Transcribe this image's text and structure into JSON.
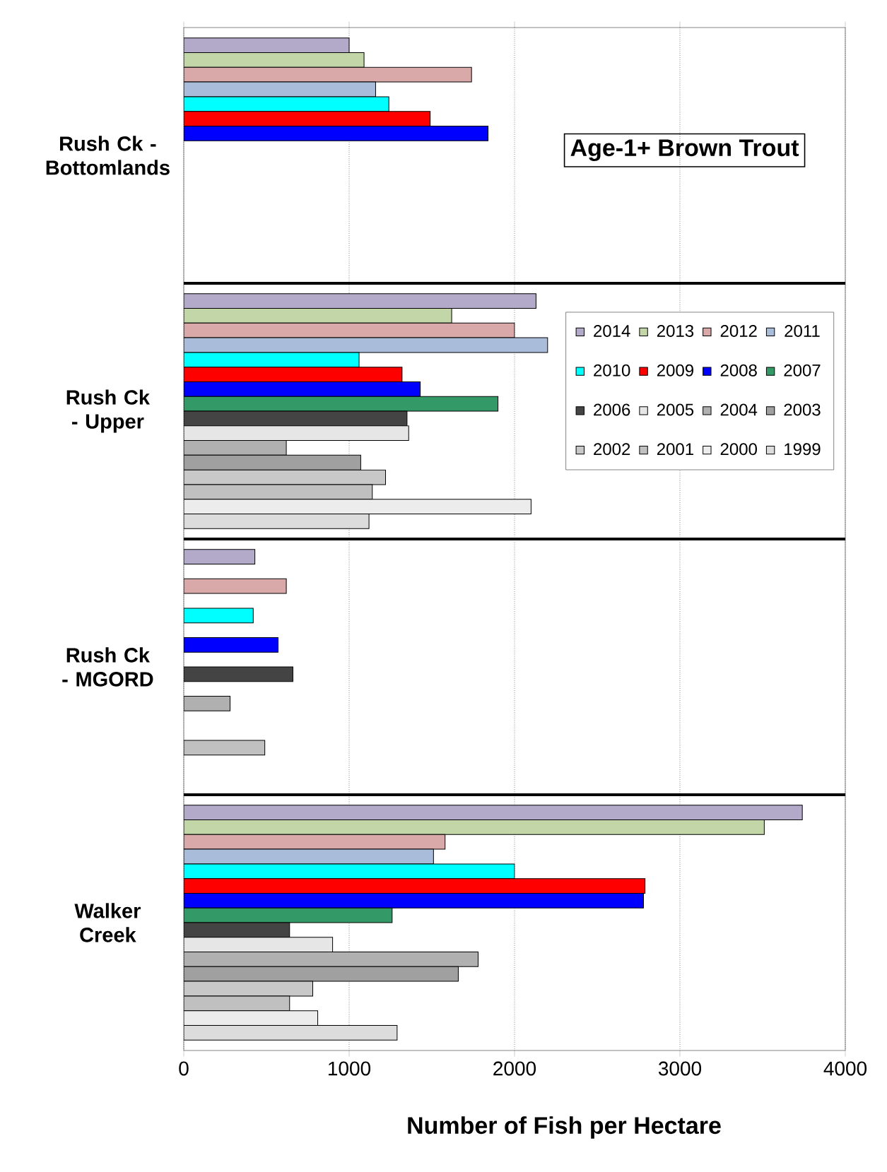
{
  "chart_data": {
    "type": "bar",
    "orientation": "horizontal",
    "title": "Age-1+ Brown Trout",
    "xlabel": "Number of Fish per Hectare",
    "categories": [
      "Rush Ck - Bottomlands",
      "Rush Ck - Upper",
      "Rush Ck - MGORD",
      "Walker Creek"
    ],
    "series": [
      {
        "name": "2014",
        "color": "#b3a9c9",
        "values": [
          1000,
          2130,
          430,
          3740
        ]
      },
      {
        "name": "2013",
        "color": "#c3d6a7",
        "values": [
          1090,
          1620,
          null,
          3510
        ]
      },
      {
        "name": "2012",
        "color": "#d9a8a8",
        "values": [
          1740,
          2000,
          620,
          1580
        ]
      },
      {
        "name": "2011",
        "color": "#a9bcd9",
        "values": [
          1160,
          2200,
          null,
          1510
        ]
      },
      {
        "name": "2010",
        "color": "#00ffff",
        "values": [
          1240,
          1060,
          420,
          2000
        ]
      },
      {
        "name": "2009",
        "color": "#ff0000",
        "values": [
          1490,
          1320,
          null,
          2790
        ]
      },
      {
        "name": "2008",
        "color": "#0000ff",
        "values": [
          1840,
          1430,
          570,
          2780
        ]
      },
      {
        "name": "2007",
        "color": "#339966",
        "values": [
          null,
          1900,
          null,
          1260
        ]
      },
      {
        "name": "2006",
        "color": "#444444",
        "values": [
          null,
          1350,
          660,
          640
        ]
      },
      {
        "name": "2005",
        "color": "#e6e6e6",
        "values": [
          null,
          1360,
          null,
          900
        ]
      },
      {
        "name": "2004",
        "color": "#b0b0b0",
        "values": [
          null,
          620,
          280,
          1780
        ]
      },
      {
        "name": "2003",
        "color": "#a0a0a0",
        "values": [
          null,
          1070,
          null,
          1660
        ]
      },
      {
        "name": "2002",
        "color": "#c8c8c8",
        "values": [
          null,
          1220,
          null,
          780
        ]
      },
      {
        "name": "2001",
        "color": "#c0c0c0",
        "values": [
          null,
          1140,
          490,
          640
        ]
      },
      {
        "name": "2000",
        "color": "#ececec",
        "values": [
          null,
          2100,
          null,
          810
        ]
      },
      {
        "name": "1999",
        "color": "#dcdcdc",
        "values": [
          null,
          1120,
          null,
          1290
        ]
      }
    ],
    "xlim": [
      0,
      4000
    ],
    "xticks": [
      0,
      1000,
      2000,
      3000,
      4000
    ],
    "grid": "x",
    "legend": "right"
  }
}
